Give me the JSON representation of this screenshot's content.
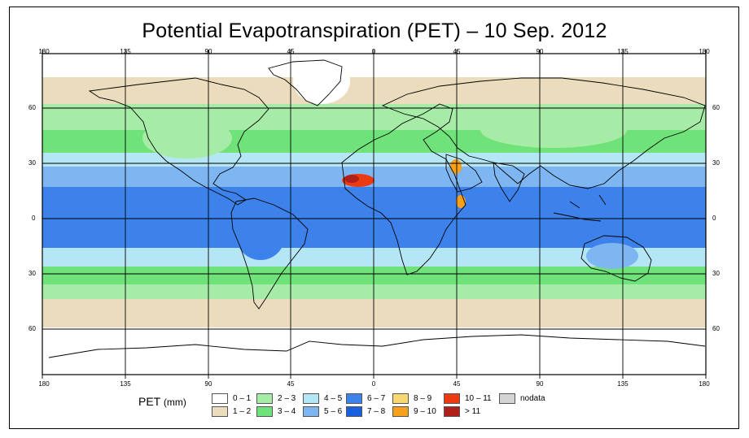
{
  "title": "Potential Evapotranspiration (PET) – 10 Sep. 2012",
  "axes": {
    "top_lon_labels": [
      "180",
      "135",
      "90",
      "45",
      "0",
      "45",
      "90",
      "135",
      "180"
    ],
    "bottom_lon_labels": [
      "180",
      "135",
      "90",
      "45",
      "0",
      "45",
      "90",
      "135",
      "180"
    ],
    "left_lat_labels": [
      "60",
      "30",
      "0",
      "30",
      "60"
    ],
    "right_lat_labels": [
      "60",
      "30",
      "0",
      "30",
      "60"
    ]
  },
  "legend": {
    "title": "PET",
    "unit": "(mm)",
    "items": [
      {
        "label": "0 – 1",
        "color": "#ffffff"
      },
      {
        "label": "1 – 2",
        "color": "#ecdcbe"
      },
      {
        "label": "2 – 3",
        "color": "#a6eca6"
      },
      {
        "label": "3 – 4",
        "color": "#6fe27a"
      },
      {
        "label": "4 – 5",
        "color": "#b4e6f6"
      },
      {
        "label": "5 – 6",
        "color": "#7eb6f2"
      },
      {
        "label": "6 – 7",
        "color": "#3d82ea"
      },
      {
        "label": "7 – 8",
        "color": "#1a5fde"
      },
      {
        "label": "8 – 9",
        "color": "#f8d870"
      },
      {
        "label": "9 – 10",
        "color": "#f6a01c"
      },
      {
        "label": "10 – 11",
        "color": "#ec3b12"
      },
      {
        "label": "> 11",
        "color": "#b0201a"
      },
      {
        "label": "nodata",
        "color": "#d4d4d4"
      }
    ]
  },
  "colors": {
    "polar": "#ffffff",
    "low": "#ecdcbe",
    "mid_low": "#a6eca6",
    "mid": "#6fe27a",
    "mid_high": "#b4e6f6",
    "high": "#7eb6f2",
    "very_high": "#3d82ea",
    "extreme": "#1a5fde"
  }
}
